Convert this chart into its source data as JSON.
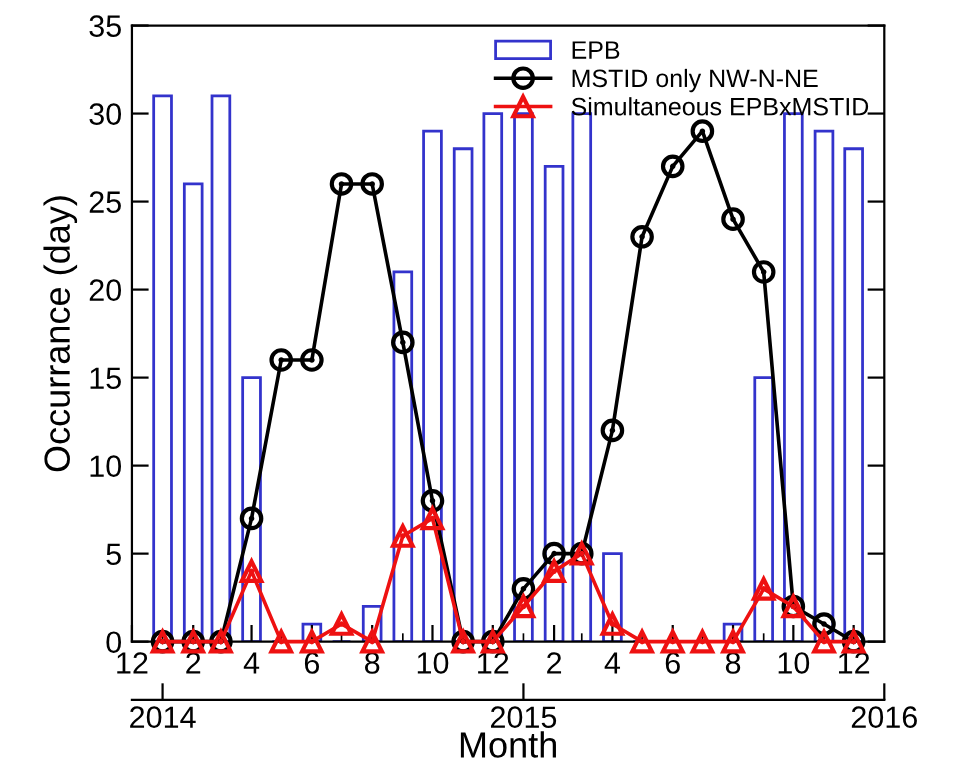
{
  "chart_data": {
    "type": "bar",
    "xlabel": "Month",
    "ylabel": "Occurrance (day)",
    "x": [
      "2014-01",
      "2014-02",
      "2014-03",
      "2014-04",
      "2014-05",
      "2014-06",
      "2014-07",
      "2014-08",
      "2014-09",
      "2014-10",
      "2014-11",
      "2014-12",
      "2015-01",
      "2015-02",
      "2015-03",
      "2015-04",
      "2015-05",
      "2015-06",
      "2015-07",
      "2015-08",
      "2015-09",
      "2015-10",
      "2015-11",
      "2015-12"
    ],
    "series": [
      {
        "name": "EPB",
        "color": "#3333cc",
        "values": [
          31,
          26,
          31,
          15,
          0,
          1,
          0,
          2,
          21,
          29,
          28,
          30,
          30,
          27,
          30,
          5,
          0,
          0,
          0,
          1,
          15,
          30,
          29,
          28
        ]
      },
      {
        "name": "MSTID only NW-N-NE",
        "type": "line",
        "color": "#000000",
        "marker": "circle",
        "values": [
          0,
          0,
          0,
          7,
          16,
          16,
          26,
          26,
          17,
          8,
          0,
          0,
          3,
          5,
          5,
          12,
          23,
          27,
          29,
          24,
          21,
          2,
          1,
          0
        ]
      },
      {
        "name": "Simultaneous EPBxMSTID",
        "type": "line",
        "color": "#ee1111",
        "marker": "triangle",
        "values": [
          0,
          0,
          0,
          4,
          0,
          0,
          1,
          0,
          6,
          7,
          0,
          0,
          2,
          4,
          5,
          1,
          0,
          0,
          0,
          0,
          3,
          2,
          0,
          0
        ]
      }
    ],
    "xlim": [
      "2013-12",
      "2016-01"
    ],
    "xticks": [
      {
        "value": "2013-12",
        "label": "12"
      },
      {
        "value": "2014-02",
        "label": "2"
      },
      {
        "value": "2014-04",
        "label": "4"
      },
      {
        "value": "2014-06",
        "label": "6"
      },
      {
        "value": "2014-08",
        "label": "8"
      },
      {
        "value": "2014-10",
        "label": "10"
      },
      {
        "value": "2014-12",
        "label": "12"
      },
      {
        "value": "2015-02",
        "label": "2"
      },
      {
        "value": "2015-04",
        "label": "4"
      },
      {
        "value": "2015-06",
        "label": "6"
      },
      {
        "value": "2015-08",
        "label": "8"
      },
      {
        "value": "2015-10",
        "label": "10"
      },
      {
        "value": "2015-12",
        "label": "12"
      }
    ],
    "x2lim": [
      "2013-12",
      "2016-01"
    ],
    "x2ticks": [
      {
        "value": "2014-01",
        "label": "2014"
      },
      {
        "value": "2015-01",
        "label": "2015"
      },
      {
        "value": "2016-01",
        "label": "2016"
      }
    ],
    "ylim": [
      0,
      35
    ],
    "yticks": [
      0,
      5,
      10,
      15,
      20,
      25,
      30,
      35
    ],
    "grid": false,
    "legend": "top right",
    "line_style": "solid"
  }
}
